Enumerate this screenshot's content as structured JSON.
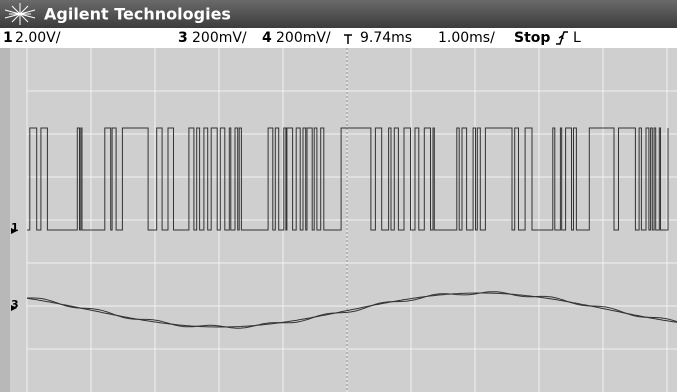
{
  "header": {
    "title": "Agilent Technologies"
  },
  "status_bar": {
    "ch1_number": "1",
    "ch1_scale": "2.00V/",
    "ch3_number": "3",
    "ch3_scale": "200mV/",
    "ch4_number": "4",
    "ch4_scale": "200mV/",
    "time_delay": "9.74ms",
    "time_scale": "1.00ms/",
    "run_state": "Stop",
    "trigger_mode": "L"
  },
  "markers": [
    "1",
    "3"
  ]
}
